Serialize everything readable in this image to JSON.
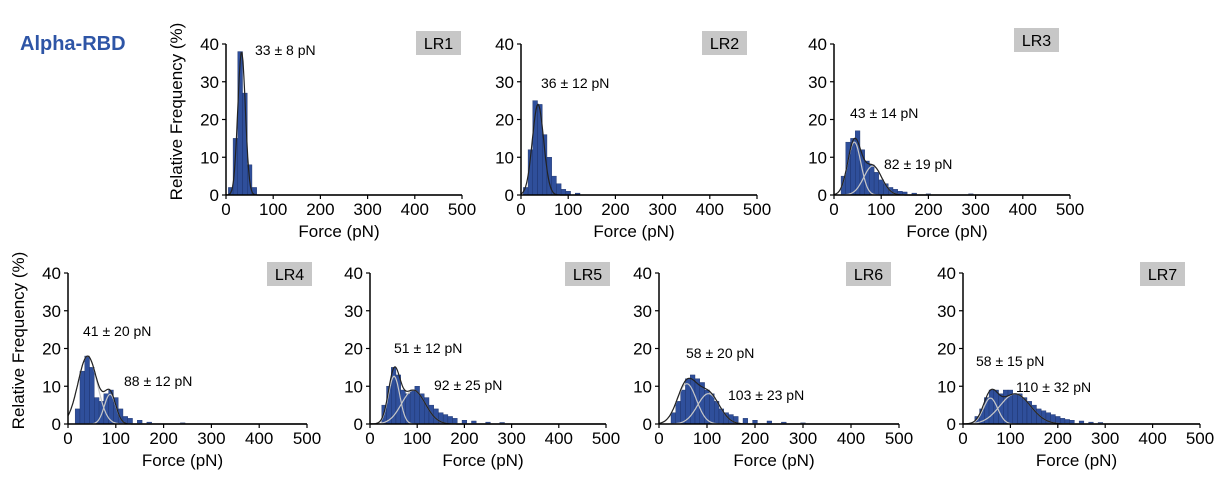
{
  "figure": {
    "title": "Alpha-RBD",
    "colors": {
      "bar": "#2f4f9b",
      "bar_edge": "#1a2f66",
      "fit_total": "#222222",
      "fit_component": "#c8c8c8",
      "badge": "#c7c7c7",
      "title": "#2e55a6"
    }
  },
  "chart_data": [
    {
      "type": "bar",
      "panel_label": "LR1",
      "xlabel": "Force (pN)",
      "ylabel": "Relative Frequency (%)",
      "xlim": [
        0,
        500
      ],
      "ylim": [
        0,
        40
      ],
      "xticks": [
        0,
        100,
        200,
        300,
        400,
        500
      ],
      "yticks": [
        0,
        10,
        20,
        30,
        40
      ],
      "bin_width": 10,
      "bins": [
        [
          10,
          2
        ],
        [
          20,
          15
        ],
        [
          30,
          38
        ],
        [
          40,
          27
        ],
        [
          50,
          8
        ],
        [
          60,
          2
        ]
      ],
      "fits": [
        {
          "mean": 33,
          "sd": 8,
          "label": "33 ± 8 pN"
        }
      ]
    },
    {
      "type": "bar",
      "panel_label": "LR2",
      "xlabel": "Force (pN)",
      "ylabel": "",
      "xlim": [
        0,
        500
      ],
      "ylim": [
        0,
        40
      ],
      "xticks": [
        0,
        100,
        200,
        300,
        400,
        500
      ],
      "yticks": [
        0,
        10,
        20,
        30,
        40
      ],
      "bin_width": 10,
      "bins": [
        [
          10,
          2
        ],
        [
          20,
          12
        ],
        [
          30,
          25
        ],
        [
          40,
          24
        ],
        [
          50,
          16
        ],
        [
          60,
          10
        ],
        [
          70,
          5
        ],
        [
          80,
          3
        ],
        [
          90,
          1.5
        ],
        [
          100,
          1
        ],
        [
          120,
          0.5
        ]
      ],
      "fits": [
        {
          "mean": 36,
          "sd": 12,
          "label": "36 ± 12 pN"
        }
      ]
    },
    {
      "type": "bar",
      "panel_label": "LR3",
      "xlabel": "Force (pN)",
      "ylabel": "",
      "xlim": [
        0,
        500
      ],
      "ylim": [
        0,
        40
      ],
      "xticks": [
        0,
        100,
        200,
        300,
        400,
        500
      ],
      "yticks": [
        0,
        10,
        20,
        30,
        40
      ],
      "bin_width": 10,
      "bins": [
        [
          20,
          5
        ],
        [
          30,
          14
        ],
        [
          40,
          15
        ],
        [
          50,
          17
        ],
        [
          60,
          12
        ],
        [
          70,
          9
        ],
        [
          80,
          8
        ],
        [
          90,
          6
        ],
        [
          100,
          4
        ],
        [
          110,
          3
        ],
        [
          120,
          2
        ],
        [
          130,
          1.5
        ],
        [
          140,
          1
        ],
        [
          150,
          0.8
        ],
        [
          170,
          0.5
        ],
        [
          200,
          0.3
        ],
        [
          290,
          0.3
        ]
      ],
      "fits": [
        {
          "mean": 43,
          "sd": 14,
          "label": "43 ± 14 pN"
        },
        {
          "mean": 82,
          "sd": 19,
          "label": "82 ± 19 pN"
        }
      ]
    },
    {
      "type": "bar",
      "panel_label": "LR4",
      "xlabel": "Force (pN)",
      "ylabel": "Relative Frequency (%)",
      "xlim": [
        0,
        500
      ],
      "ylim": [
        0,
        40
      ],
      "xticks": [
        0,
        100,
        200,
        300,
        400,
        500
      ],
      "yticks": [
        0,
        10,
        20,
        30,
        40
      ],
      "bin_width": 10,
      "bins": [
        [
          20,
          4
        ],
        [
          30,
          14
        ],
        [
          40,
          18
        ],
        [
          50,
          15
        ],
        [
          60,
          7
        ],
        [
          70,
          6
        ],
        [
          80,
          8
        ],
        [
          90,
          9
        ],
        [
          100,
          7
        ],
        [
          110,
          4
        ],
        [
          120,
          2
        ],
        [
          130,
          1.5
        ],
        [
          150,
          1
        ],
        [
          170,
          0.5
        ],
        [
          240,
          0.3
        ]
      ],
      "fits": [
        {
          "mean": 41,
          "sd": 20,
          "label": "41 ± 20 pN"
        },
        {
          "mean": 88,
          "sd": 12,
          "label": "88 ± 12 pN"
        }
      ]
    },
    {
      "type": "bar",
      "panel_label": "LR5",
      "xlabel": "Force (pN)",
      "ylabel": "",
      "xlim": [
        0,
        500
      ],
      "ylim": [
        0,
        40
      ],
      "xticks": [
        0,
        100,
        200,
        300,
        400,
        500
      ],
      "yticks": [
        0,
        10,
        20,
        30,
        40
      ],
      "bin_width": 10,
      "bins": [
        [
          30,
          5
        ],
        [
          40,
          10
        ],
        [
          50,
          15
        ],
        [
          60,
          13
        ],
        [
          70,
          9
        ],
        [
          80,
          8
        ],
        [
          90,
          9
        ],
        [
          100,
          10
        ],
        [
          110,
          8
        ],
        [
          120,
          7
        ],
        [
          130,
          5
        ],
        [
          140,
          4
        ],
        [
          150,
          3
        ],
        [
          160,
          2.5
        ],
        [
          170,
          2
        ],
        [
          180,
          1.5
        ],
        [
          200,
          1
        ],
        [
          220,
          0.8
        ],
        [
          250,
          0.5
        ],
        [
          280,
          0.4
        ]
      ],
      "fits": [
        {
          "mean": 51,
          "sd": 12,
          "label": "51 ± 12 pN"
        },
        {
          "mean": 92,
          "sd": 25,
          "label": "92 ± 25 pN"
        }
      ]
    },
    {
      "type": "bar",
      "panel_label": "LR6",
      "xlabel": "Force (pN)",
      "ylabel": "",
      "xlim": [
        0,
        500
      ],
      "ylim": [
        0,
        40
      ],
      "xticks": [
        0,
        100,
        200,
        300,
        400,
        500
      ],
      "yticks": [
        0,
        10,
        20,
        30,
        40
      ],
      "bin_width": 10,
      "bins": [
        [
          30,
          3
        ],
        [
          40,
          6
        ],
        [
          50,
          9
        ],
        [
          60,
          12
        ],
        [
          70,
          13
        ],
        [
          80,
          12
        ],
        [
          90,
          11
        ],
        [
          100,
          9
        ],
        [
          110,
          8
        ],
        [
          120,
          6
        ],
        [
          130,
          4
        ],
        [
          140,
          3
        ],
        [
          150,
          2.5
        ],
        [
          160,
          2
        ],
        [
          180,
          1.5
        ],
        [
          200,
          1
        ],
        [
          230,
          0.8
        ],
        [
          260,
          0.5
        ],
        [
          300,
          0.3
        ]
      ],
      "fits": [
        {
          "mean": 58,
          "sd": 20,
          "label": "58 ± 20 pN"
        },
        {
          "mean": 103,
          "sd": 23,
          "label": "103 ± 23 pN"
        }
      ]
    },
    {
      "type": "bar",
      "panel_label": "LR7",
      "xlabel": "Force (pN)",
      "ylabel": "",
      "xlim": [
        0,
        500
      ],
      "ylim": [
        0,
        40
      ],
      "xticks": [
        0,
        100,
        200,
        300,
        400,
        500
      ],
      "yticks": [
        0,
        10,
        20,
        30,
        40
      ],
      "bin_width": 10,
      "bins": [
        [
          30,
          2
        ],
        [
          40,
          4
        ],
        [
          50,
          7
        ],
        [
          60,
          9
        ],
        [
          70,
          9
        ],
        [
          80,
          8
        ],
        [
          90,
          9
        ],
        [
          100,
          9
        ],
        [
          110,
          8
        ],
        [
          120,
          8
        ],
        [
          130,
          7
        ],
        [
          140,
          6
        ],
        [
          150,
          5
        ],
        [
          160,
          4
        ],
        [
          170,
          3.5
        ],
        [
          180,
          3
        ],
        [
          190,
          2.5
        ],
        [
          200,
          2
        ],
        [
          210,
          1.5
        ],
        [
          220,
          1.2
        ],
        [
          230,
          1
        ],
        [
          250,
          0.8
        ],
        [
          270,
          0.5
        ],
        [
          290,
          0.4
        ]
      ],
      "fits": [
        {
          "mean": 58,
          "sd": 15,
          "label": "58 ± 15 pN"
        },
        {
          "mean": 110,
          "sd": 32,
          "label": "110 ± 32 pN"
        }
      ]
    }
  ]
}
